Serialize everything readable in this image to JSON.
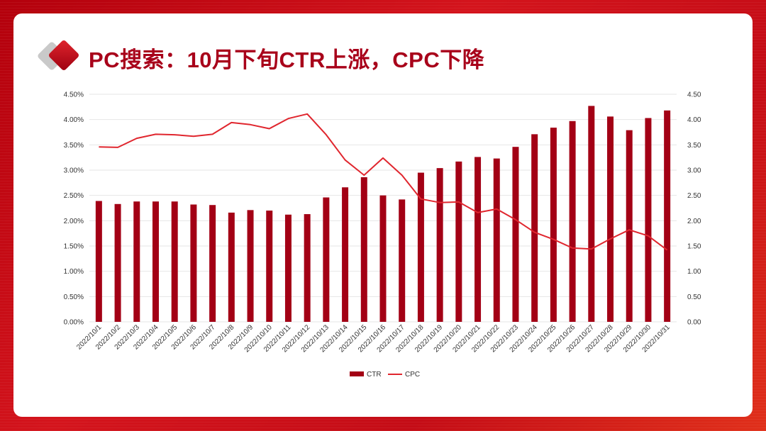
{
  "title": "PC搜索：10月下旬CTR上涨，CPC下降",
  "colors": {
    "bar": "#a30015",
    "line": "#e0262e",
    "title": "#a8001a",
    "grid": "#e6e6e6"
  },
  "chart_data": {
    "type": "bar+line",
    "categories": [
      "2022/10/1",
      "2022/10/2",
      "2022/10/3",
      "2022/10/4",
      "2022/10/5",
      "2022/10/6",
      "2022/10/7",
      "2022/10/8",
      "2022/10/9",
      "2022/10/10",
      "2022/10/11",
      "2022/10/12",
      "2022/10/13",
      "2022/10/14",
      "2022/10/15",
      "2022/10/16",
      "2022/10/17",
      "2022/10/18",
      "2022/10/19",
      "2022/10/20",
      "2022/10/21",
      "2022/10/22",
      "2022/10/23",
      "2022/10/24",
      "2022/10/25",
      "2022/10/26",
      "2022/10/27",
      "2022/10/28",
      "2022/10/29",
      "2022/10/30",
      "2022/10/31"
    ],
    "series": [
      {
        "name": "CTR",
        "type": "bar",
        "axis": "left",
        "values": [
          2.39,
          2.33,
          2.38,
          2.38,
          2.38,
          2.32,
          2.31,
          2.16,
          2.21,
          2.2,
          2.12,
          2.13,
          2.46,
          2.66,
          2.86,
          2.5,
          2.42,
          2.95,
          3.04,
          3.17,
          3.26,
          3.23,
          3.46,
          3.71,
          3.84,
          3.97,
          4.27,
          4.06,
          3.79,
          4.03,
          4.18
        ]
      },
      {
        "name": "CPC",
        "type": "line",
        "axis": "right",
        "values": [
          3.46,
          3.45,
          3.63,
          3.71,
          3.7,
          3.67,
          3.71,
          3.94,
          3.9,
          3.82,
          4.02,
          4.11,
          3.7,
          3.2,
          2.9,
          3.24,
          2.9,
          2.43,
          2.36,
          2.37,
          2.16,
          2.23,
          2.02,
          1.77,
          1.63,
          1.46,
          1.44,
          1.64,
          1.82,
          1.7,
          1.42
        ]
      }
    ],
    "y_left": {
      "ylim": [
        0,
        4.5
      ],
      "ticks": [
        "0.00%",
        "0.50%",
        "1.00%",
        "1.50%",
        "2.00%",
        "2.50%",
        "3.00%",
        "3.50%",
        "4.00%",
        "4.50%"
      ]
    },
    "y_right": {
      "ylim": [
        0,
        4.5
      ],
      "ticks": [
        "0.00",
        "0.50",
        "1.00",
        "1.50",
        "2.00",
        "2.50",
        "3.00",
        "3.50",
        "4.00",
        "4.50"
      ]
    },
    "grid": true,
    "legend": {
      "position": "bottom",
      "items": [
        "CTR",
        "CPC"
      ]
    }
  }
}
